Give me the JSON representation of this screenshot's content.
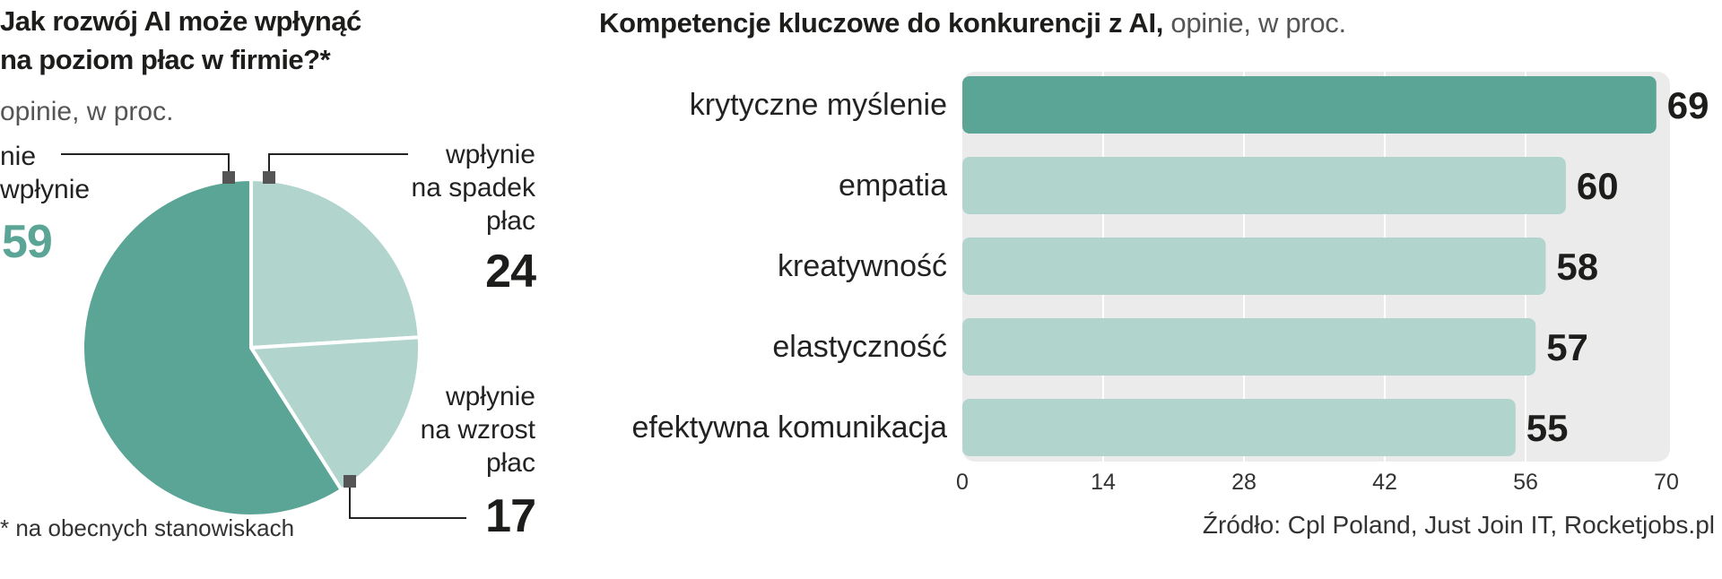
{
  "colors": {
    "dark_teal": "#5ba596",
    "light_teal": "#b1d4cd",
    "marker": "#555555",
    "bar_background": "#ebebeb"
  },
  "pie": {
    "title_line1": "Jak rozwój AI może wpłynąć",
    "title_line2": "na poziom płac w firmie?*",
    "subtitle": "opinie, w proc.",
    "footnote": "* na obecnych stanowiskach",
    "slices": [
      {
        "label_line1": "nie",
        "label_line2": "wpłynie",
        "label_line3": "",
        "value": "59"
      },
      {
        "label_line1": "wpłynie",
        "label_line2": "na spadek",
        "label_line3": "płac",
        "value": "24"
      },
      {
        "label_line1": "wpłynie",
        "label_line2": "na wzrost",
        "label_line3": "płac",
        "value": "17"
      }
    ]
  },
  "bars": {
    "heading_bold": "Kompetencje kluczowe do konkurencji z AI,",
    "heading_light": " opinie, w proc.",
    "source": "Źródło: Cpl Poland, Just Join IT, Rocketjobs.pl"
  },
  "chart_data": [
    {
      "type": "pie",
      "title": "Jak rozwój AI może wpłynąć na poziom płac w firmie?*",
      "subtitle": "opinie, w proc.",
      "categories": [
        "nie wpłynie",
        "wpłynie na spadek płac",
        "wpłynie na wzrost płac"
      ],
      "values": [
        59,
        24,
        17
      ]
    },
    {
      "type": "bar",
      "orientation": "horizontal",
      "title": "Kompetencje kluczowe do konkurencji z AI,",
      "subtitle": "opinie, w proc.",
      "categories": [
        "krytyczne myślenie",
        "empatia",
        "kreatywność",
        "elastyczność",
        "efektywna komunikacja"
      ],
      "values": [
        69,
        60,
        58,
        57,
        55
      ],
      "xlim": [
        0,
        70
      ],
      "xticks": [
        0,
        14,
        28,
        42,
        56,
        70
      ],
      "grid": true
    }
  ]
}
